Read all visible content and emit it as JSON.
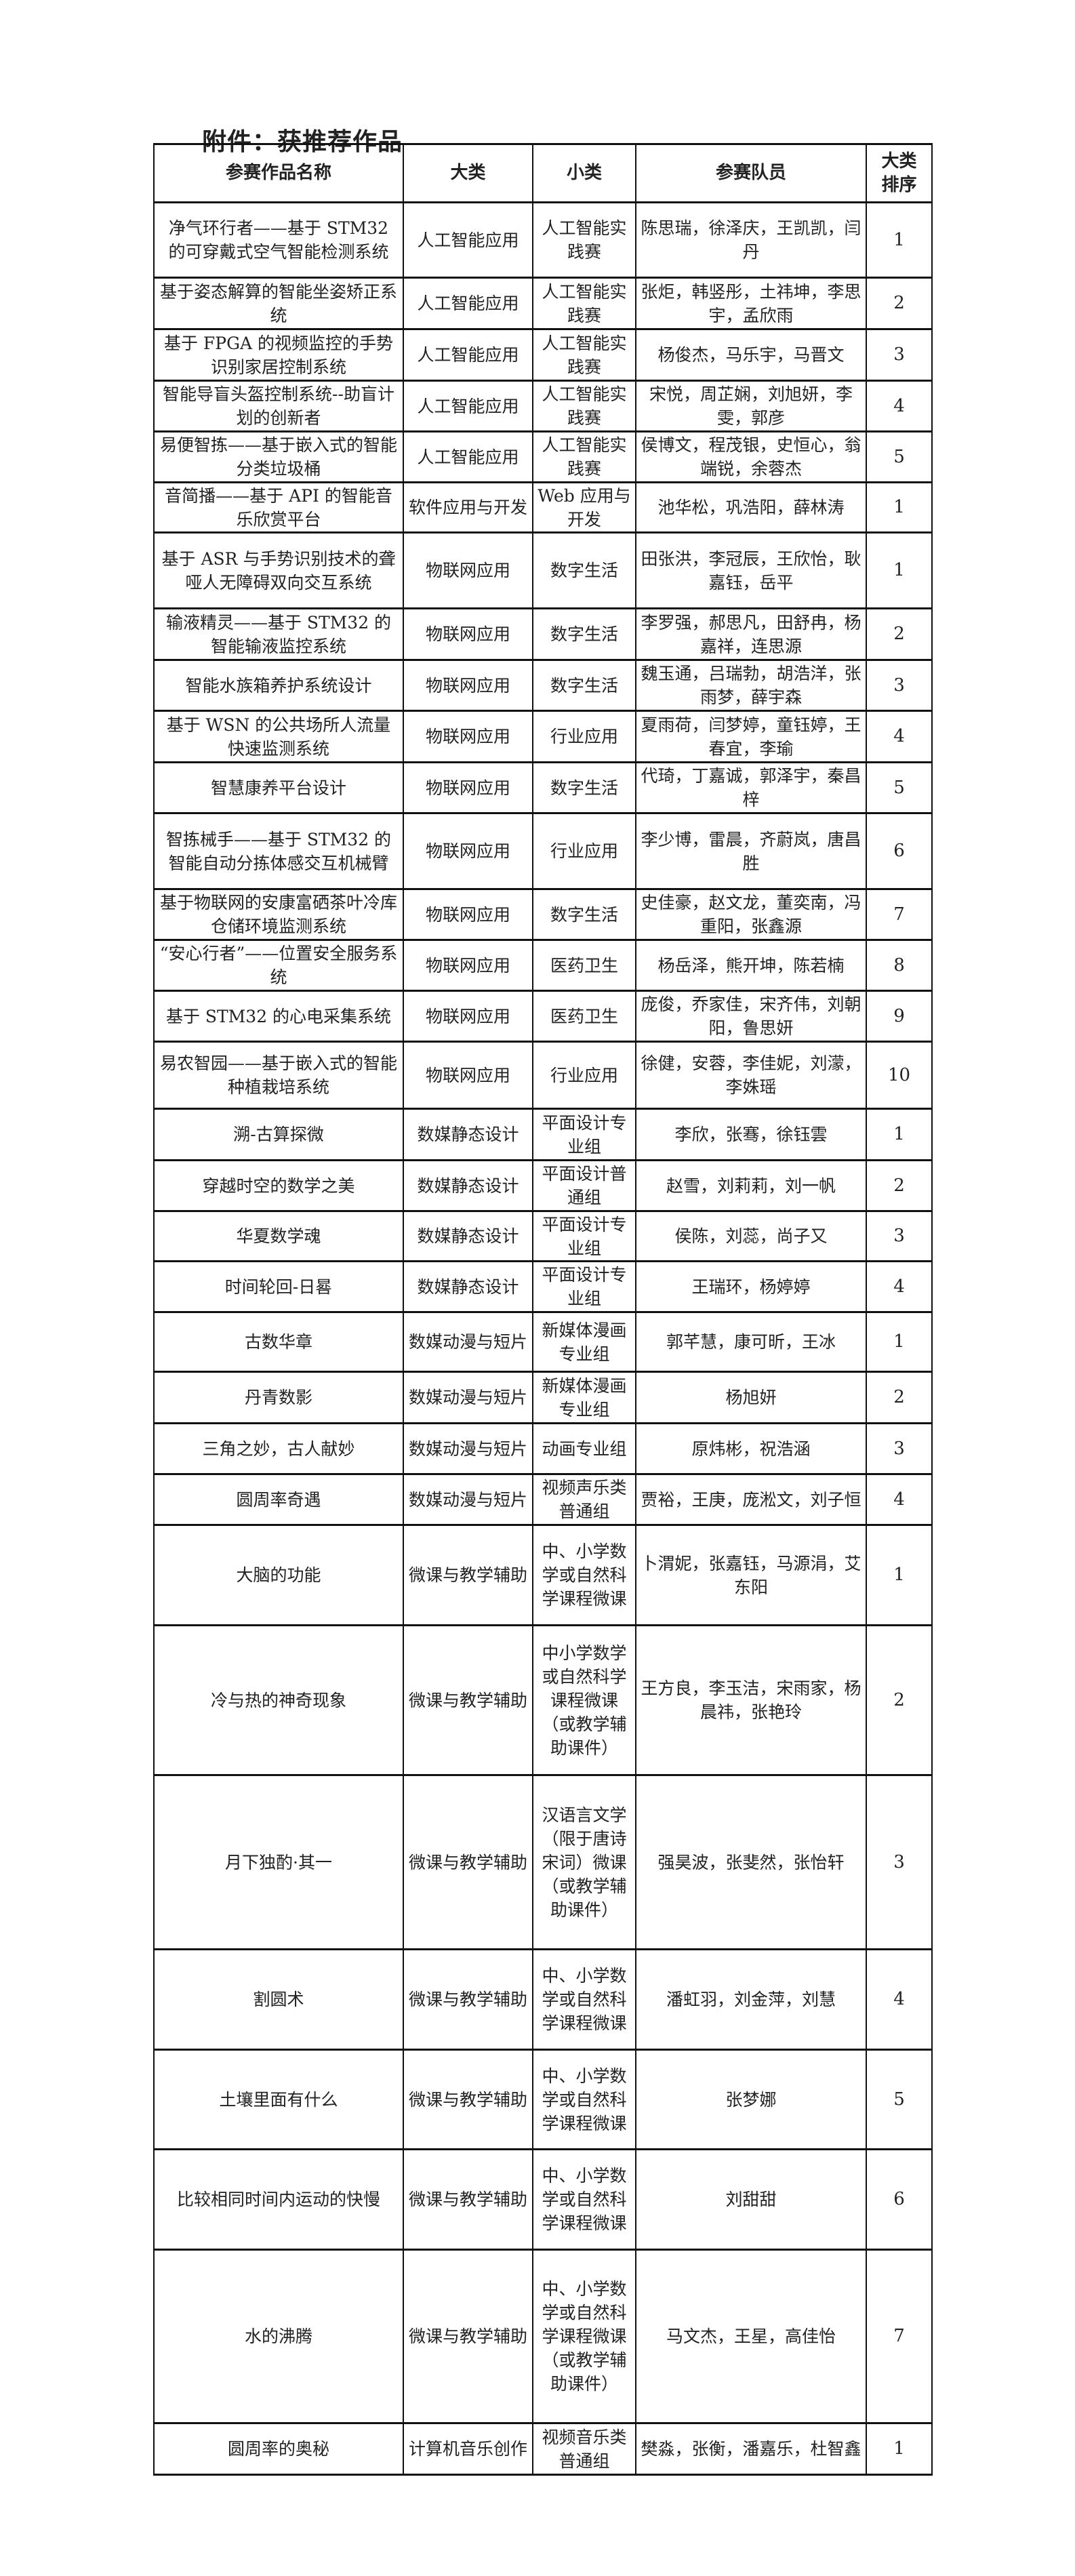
{
  "title": "附件：获推荐作品",
  "headers": {
    "name": "参赛作品名称",
    "major": "大类",
    "minor": "小类",
    "members": "参赛队员",
    "rank": "大类排序"
  },
  "rows": [
    {
      "name": "净气环行者——基于 STM32 的可穿戴式空气智能检测系统",
      "major": "人工智能应用",
      "minor": "人工智能实践赛",
      "members": "陈思瑞，徐泽庆，王凯凯，闫丹",
      "rank": "1"
    },
    {
      "name": "基于姿态解算的智能坐姿矫正系统",
      "major": "人工智能应用",
      "minor": "人工智能实践赛",
      "members": "张炬，韩竖彤，土祎坤，李思宇，孟欣雨",
      "rank": "2"
    },
    {
      "name": "基于 FPGA 的视频监控的手势识别家居控制系统",
      "major": "人工智能应用",
      "minor": "人工智能实践赛",
      "members": "杨俊杰，马乐宇，马晋文",
      "rank": "3"
    },
    {
      "name": "智能导盲头盔控制系统--助盲计划的创新者",
      "major": "人工智能应用",
      "minor": "人工智能实践赛",
      "members": "宋悦，周芷娴，刘旭妍，李雯，郭彦",
      "rank": "4"
    },
    {
      "name": "易便智拣——基于嵌入式的智能分类垃圾桶",
      "major": "人工智能应用",
      "minor": "人工智能实践赛",
      "members": "侯博文，程茂银，史恒心，翁端锐，余蓉杰",
      "rank": "5"
    },
    {
      "name": "音简播——基于 API 的智能音乐欣赏平台",
      "major": "软件应用与开发",
      "minor": "Web 应用与开发",
      "members": "池华松，巩浩阳，薛林涛",
      "rank": "1"
    },
    {
      "name": "基于 ASR 与手势识别技术的聋哑人无障碍双向交互系统",
      "major": "物联网应用",
      "minor": "数字生活",
      "members": "田张洪，李冠辰，王欣怡，耿嘉钰，岳平",
      "rank": "1"
    },
    {
      "name": "输液精灵——基于 STM32 的智能输液监控系统",
      "major": "物联网应用",
      "minor": "数字生活",
      "members": "李罗强，郝思凡，田舒冉，杨嘉祥，连思源",
      "rank": "2"
    },
    {
      "name": "智能水族箱养护系统设计",
      "major": "物联网应用",
      "minor": "数字生活",
      "members": "魏玉通，吕瑞勃，胡浩洋，张雨梦，薛宇森",
      "rank": "3"
    },
    {
      "name": "基于 WSN 的公共场所人流量快速监测系统",
      "major": "物联网应用",
      "minor": "行业应用",
      "members": "夏雨荷，闫梦婷，童钰婷，王春宜，李瑜",
      "rank": "4"
    },
    {
      "name": "智慧康养平台设计",
      "major": "物联网应用",
      "minor": "数字生活",
      "members": "代琦，丁嘉诚，郭泽宇，秦昌梓",
      "rank": "5"
    },
    {
      "name": "智拣械手——基于 STM32 的智能自动分拣体感交互机械臂",
      "major": "物联网应用",
      "minor": "行业应用",
      "members": "李少博，雷晨，齐蔚岚，唐昌胜",
      "rank": "6"
    },
    {
      "name": "基于物联网的安康富硒茶叶冷库仓储环境监测系统",
      "major": "物联网应用",
      "minor": "数字生活",
      "members": "史佳豪，赵文龙，董奕南，冯重阳，张鑫源",
      "rank": "7"
    },
    {
      "name": "“安心行者”——位置安全服务系统",
      "major": "物联网应用",
      "minor": "医药卫生",
      "members": "杨岳泽，熊开坤，陈若楠",
      "rank": "8"
    },
    {
      "name": "基于 STM32 的心电采集系统",
      "major": "物联网应用",
      "minor": "医药卫生",
      "members": "庞俊，乔家佳，宋齐伟，刘朝阳，鲁思妍",
      "rank": "9"
    },
    {
      "name": "易农智园——基于嵌入式的智能种植栽培系统",
      "major": "物联网应用",
      "minor": "行业应用",
      "members": "徐健，安蓉，李佳妮，刘濛，李姝瑶",
      "rank": "10"
    },
    {
      "name": "溯-古算探微",
      "major": "数媒静态设计",
      "minor": "平面设计专业组",
      "members": "李欣，张骞，徐钰雲",
      "rank": "1"
    },
    {
      "name": "穿越时空的数学之美",
      "major": "数媒静态设计",
      "minor": "平面设计普通组",
      "members": "赵雪，刘莉莉，刘一帆",
      "rank": "2"
    },
    {
      "name": "华夏数学魂",
      "major": "数媒静态设计",
      "minor": "平面设计专业组",
      "members": "侯陈，刘蕊，尚子又",
      "rank": "3"
    },
    {
      "name": "时间轮回-日晷",
      "major": "数媒静态设计",
      "minor": "平面设计专业组",
      "members": "王瑞环，杨婷婷",
      "rank": "4"
    },
    {
      "name": "古数华章",
      "major": "数媒动漫与短片",
      "minor": "新媒体漫画专业组",
      "members": "郭芊慧，康可昕，王冰",
      "rank": "1"
    },
    {
      "name": "丹青数影",
      "major": "数媒动漫与短片",
      "minor": "新媒体漫画专业组",
      "members": "杨旭妍",
      "rank": "2"
    },
    {
      "name": "三角之妙，古人献妙",
      "major": "数媒动漫与短片",
      "minor": "动画专业组",
      "members": "原炜彬，祝浩涵",
      "rank": "3"
    },
    {
      "name": "圆周率奇遇",
      "major": "数媒动漫与短片",
      "minor": "视频声乐类普通组",
      "members": "贾裕，王庚，庞淞文，刘子恒",
      "rank": "4"
    },
    {
      "name": "大脑的功能",
      "major": "微课与教学辅助",
      "minor": "中、小学数学或自然科学课程微课",
      "members": "卜渭妮，张嘉钰，马源涓，艾东阳",
      "rank": "1"
    },
    {
      "name": "冷与热的神奇现象",
      "major": "微课与教学辅助",
      "minor": "中小学数学或自然科学课程微课（或教学辅助课件）",
      "members": "王方良，李玉洁，宋雨家，杨晨祎，张艳玲",
      "rank": "2"
    },
    {
      "name": "月下独酌·其一",
      "major": "微课与教学辅助",
      "minor": "汉语言文学（限于唐诗宋词）微课（或教学辅助课件）",
      "members": "强昊波，张斐然，张怡轩",
      "rank": "3"
    },
    {
      "name": "割圆术",
      "major": "微课与教学辅助",
      "minor": "中、小学数学或自然科学课程微课",
      "members": "潘虹羽，刘金萍，刘慧",
      "rank": "4"
    },
    {
      "name": "土壤里面有什么",
      "major": "微课与教学辅助",
      "minor": "中、小学数学或自然科学课程微课",
      "members": "张梦娜",
      "rank": "5"
    },
    {
      "name": "比较相同时间内运动的快慢",
      "major": "微课与教学辅助",
      "minor": "中、小学数学或自然科学课程微课",
      "members": "刘甜甜",
      "rank": "6"
    },
    {
      "name": "水的沸腾",
      "major": "微课与教学辅助",
      "minor": "中、小学数学或自然科学课程微课（或教学辅助课件）",
      "members": "马文杰，王星，高佳怡",
      "rank": "7"
    },
    {
      "name": "圆周率的奥秘",
      "major": "计算机音乐创作",
      "minor": "视频音乐类普通组",
      "members": "樊淼，张衡，潘嘉乐，杜智鑫",
      "rank": "1"
    }
  ]
}
